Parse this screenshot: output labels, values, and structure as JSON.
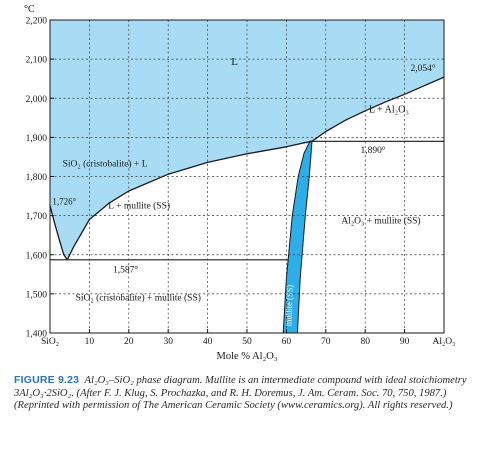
{
  "chart_data": {
    "type": "phase-diagram",
    "title": "",
    "y_unit": "°C",
    "xlabel": "Mole % Al₂O₃",
    "xlim": [
      0,
      100
    ],
    "ylim": [
      1400,
      2200
    ],
    "x_ticks": [
      0,
      10,
      20,
      30,
      40,
      50,
      60,
      70,
      80,
      90,
      100
    ],
    "x_tick_labels": [
      "SiO₂",
      "10",
      "20",
      "30",
      "40",
      "50",
      "60",
      "70",
      "80",
      "90",
      "Al₂O₃"
    ],
    "y_ticks": [
      1400,
      1500,
      1600,
      1700,
      1800,
      1900,
      2000,
      2100,
      2200
    ],
    "y_tick_labels": [
      "1,400",
      "1,500",
      "1,600",
      "1,700",
      "1,800",
      "1,900",
      "2,000",
      "2,100",
      "2,200"
    ],
    "grid": true,
    "liquid_region_color": "#a8dcf5",
    "mullite_region_color": "#2eaee8",
    "line_color": "#1a1a1a",
    "liquidus_left": [
      [
        0,
        1726
      ],
      [
        0.4,
        1710
      ],
      [
        1.2,
        1680
      ],
      [
        2.3,
        1640
      ],
      [
        3.5,
        1600
      ],
      [
        4.4,
        1587
      ]
    ],
    "liquidus_right": [
      [
        4.4,
        1587
      ],
      [
        6,
        1620
      ],
      [
        10,
        1690
      ],
      [
        15,
        1732
      ],
      [
        20,
        1763
      ],
      [
        30,
        1806
      ],
      [
        40,
        1836
      ],
      [
        50,
        1858
      ],
      [
        60,
        1876
      ],
      [
        64,
        1885
      ],
      [
        66.5,
        1890
      ]
    ],
    "liquidus_alumina": [
      [
        66.5,
        1890
      ],
      [
        70,
        1915
      ],
      [
        75,
        1944
      ],
      [
        80,
        1968
      ],
      [
        85,
        1990
      ],
      [
        90,
        2010
      ],
      [
        95,
        2032
      ],
      [
        100,
        2054
      ]
    ],
    "mullite_left_boundary": [
      [
        59.2,
        1400
      ],
      [
        60,
        1540
      ],
      [
        61.5,
        1700
      ],
      [
        63,
        1800
      ],
      [
        64.5,
        1860
      ],
      [
        66,
        1890
      ]
    ],
    "mullite_right_boundary": [
      [
        62.8,
        1400
      ],
      [
        63.5,
        1540
      ],
      [
        64.8,
        1700
      ],
      [
        65.8,
        1800
      ],
      [
        66.5,
        1890
      ]
    ],
    "isotherms": [
      {
        "T": 1587,
        "from": 0,
        "to": 60.4
      },
      {
        "T": 1890,
        "from": 66.5,
        "to": 100
      }
    ],
    "annotations": {
      "liquid": "L",
      "t_max": "2,054°",
      "l_plus_alumina": "L + Al₂O₃",
      "t_peritectic": "1,890°",
      "cristobalite_plus_l": "SiO₂ (cristobalite) + L",
      "t_cristobalite": "1,726°",
      "l_plus_mullite": "L + mullite (SS)",
      "alumina_plus_mullite": "Al₂O₃ + mullite (SS)",
      "t_eutectic": "1,587°",
      "cristobalite_plus_mullite": "SiO₂ (cristobalite) + mullite (SS)",
      "mullite_ss": "mullite (SS)"
    }
  },
  "caption": {
    "label": "FIGURE 9.23",
    "text": "Al₂O₃–SiO₂ phase diagram. Mullite is an intermediate compound with ideal stoichiometry 3Al₂O₃·2SiO₂. (After F. J. Klug, S. Prochazka, and R. H. Doremus, J. Am. Ceram. Soc. 70, 750, 1987.) (Reprinted with permission of The American Ceramic Society (www.ceramics.org). All rights reserved.)"
  }
}
